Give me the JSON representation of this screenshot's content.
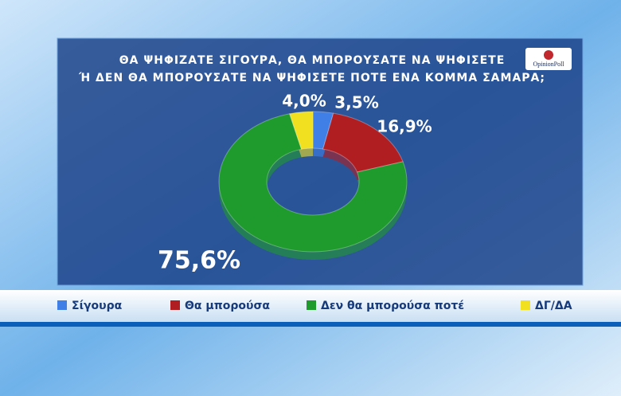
{
  "chart_data": {
    "type": "donut",
    "title": [
      "ΘΑ ΨΗΦΙΖΑΤΕ ΣΙΓΟΥΡΑ, ΘΑ ΜΠΟΡΟΥΣΑΤΕ ΝΑ ΨΗΦΙΣΕΤΕ",
      "Ή ΔΕΝ ΘΑ ΜΠΟΡΟΥΣΑΤΕ ΝΑ ΨΗΦΙΣΕΤΕ ΠΟΤΕ ΕΝΑ ΚΟΜΜΑ ΣΑΜΑΡΑ;"
    ],
    "logo": "OpinionPoll",
    "categories": [
      "Σίγουρα",
      "Θα μπορούσα",
      "Δεν θα μπορούσα ποτέ",
      "ΔΓ/ΔΑ"
    ],
    "values": [
      3.5,
      16.9,
      75.6,
      4.0
    ],
    "value_labels": [
      "3,5%",
      "16,9%",
      "75,6%",
      "4,0%"
    ],
    "colors": [
      "#3f7fe6",
      "#b01e22",
      "#1f9a2c",
      "#f0e020"
    ]
  }
}
